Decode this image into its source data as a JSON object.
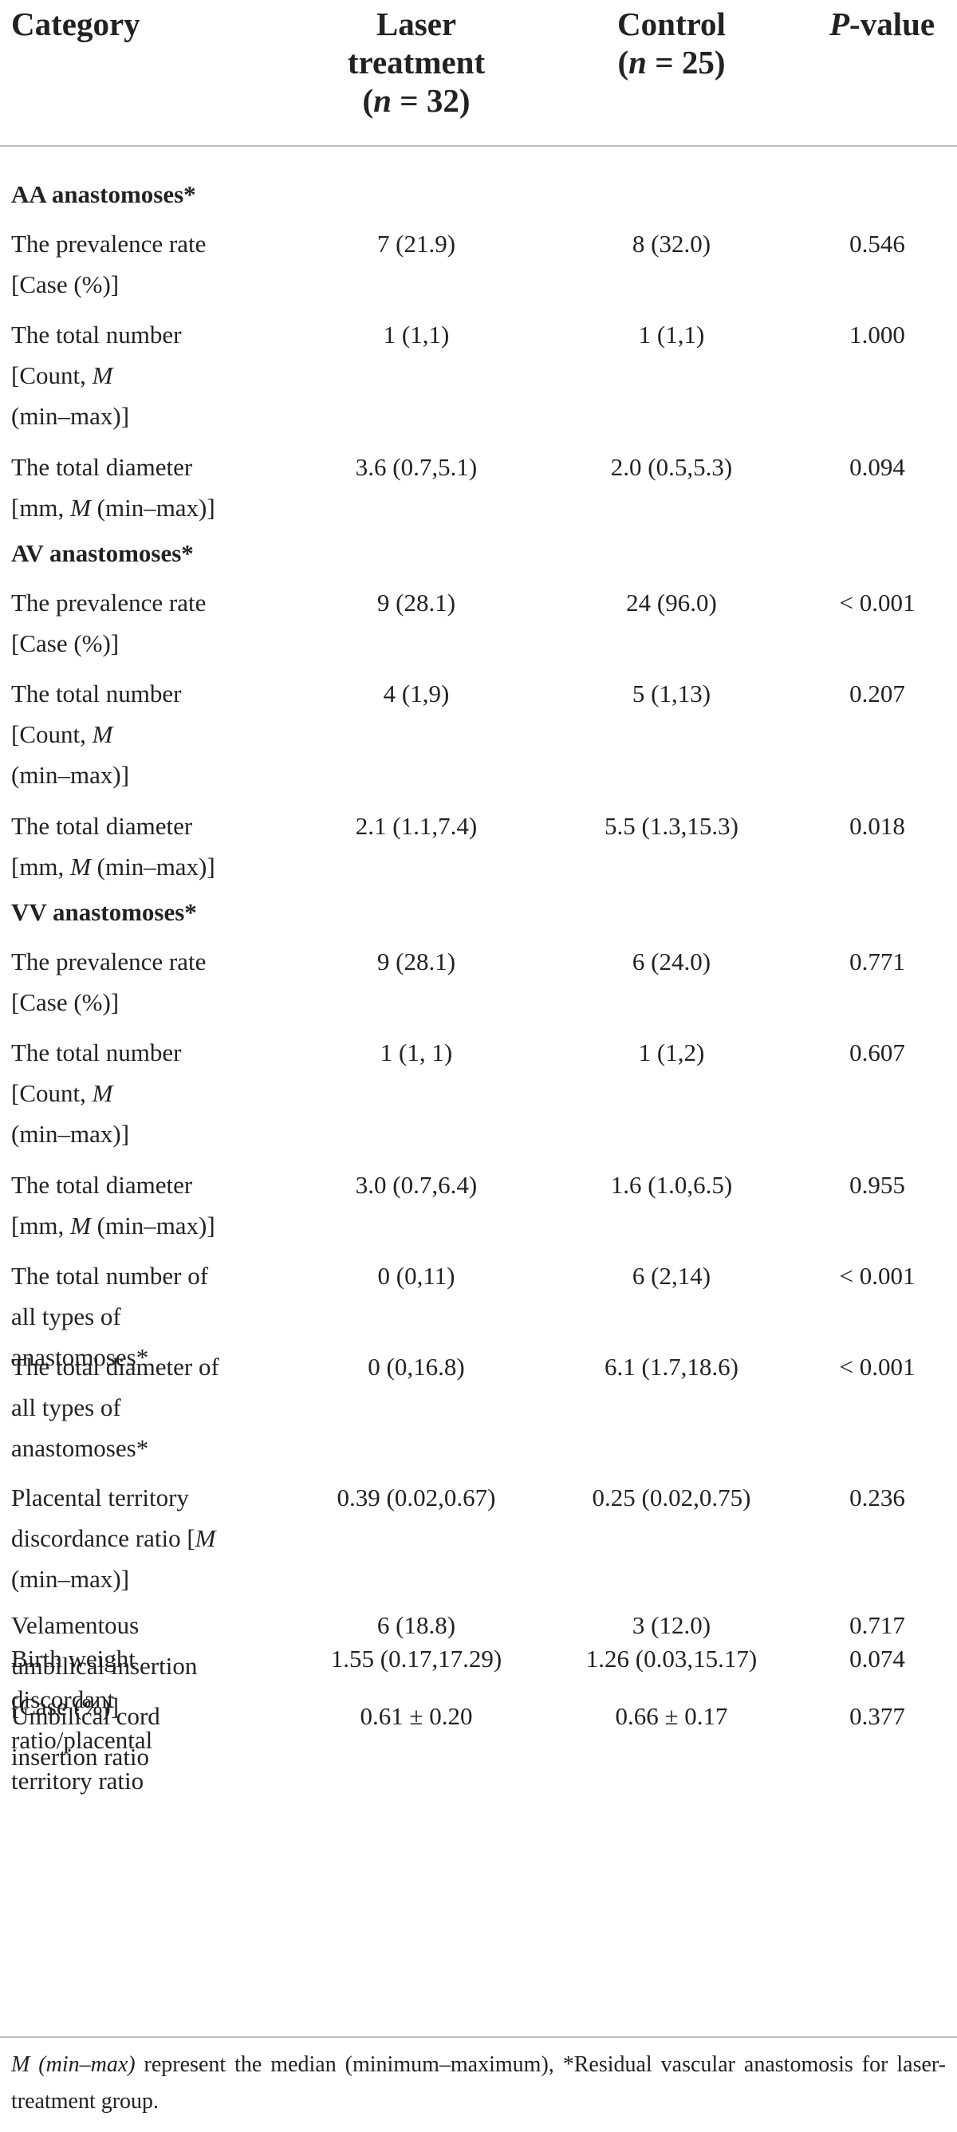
{
  "header": {
    "category": "Category",
    "laser_line1": "Laser",
    "laser_line2": "treatment",
    "laser_n": "(n = 32)",
    "control_line1": "Control",
    "control_n": "(n = 25)",
    "pvalue": "P-value"
  },
  "rows": [
    {
      "type": "section",
      "lines": [
        "AA anastomoses*"
      ]
    },
    {
      "type": "data",
      "lines": [
        "The prevalence rate",
        "[Case (%)]"
      ],
      "laser": "7 (21.9)",
      "control": "8 (32.0)",
      "p": "0.546"
    },
    {
      "type": "data",
      "lines": [
        "The total number",
        "[Count, M",
        "(min–max)]"
      ],
      "laser": "1 (1,1)",
      "control": "1 (1,1)",
      "p": "1.000"
    },
    {
      "type": "data",
      "lines": [
        "The total diameter",
        "[mm, M (min–max)]"
      ],
      "laser": "3.6 (0.7,5.1)",
      "control": "2.0 (0.5,5.3)",
      "p": "0.094"
    },
    {
      "type": "section",
      "lines": [
        "AV anastomoses*"
      ]
    },
    {
      "type": "data",
      "lines": [
        "The prevalence rate",
        "[Case (%)]"
      ],
      "laser": "9 (28.1)",
      "control": "24 (96.0)",
      "p": "< 0.001"
    },
    {
      "type": "data",
      "lines": [
        "The total number",
        "[Count, M",
        "(min–max)]"
      ],
      "laser": "4 (1,9)",
      "control": "5 (1,13)",
      "p": "0.207"
    },
    {
      "type": "data",
      "lines": [
        "The total diameter",
        "[mm, M (min–max)]"
      ],
      "laser": "2.1 (1.1,7.4)",
      "control": "5.5 (1.3,15.3)",
      "p": "0.018"
    },
    {
      "type": "section",
      "lines": [
        "VV anastomoses*"
      ]
    },
    {
      "type": "data",
      "lines": [
        "The prevalence rate",
        "[Case (%)]"
      ],
      "laser": "9 (28.1)",
      "control": "6 (24.0)",
      "p": "0.771"
    },
    {
      "type": "data",
      "lines": [
        "The total number",
        "[Count, M",
        "(min–max)]"
      ],
      "laser": "1 (1, 1)",
      "control": "1 (1,2)",
      "p": "0.607"
    },
    {
      "type": "data",
      "lines": [
        "The total diameter",
        "[mm, M (min–max)]"
      ],
      "laser": "3.0 (0.7,6.4)",
      "control": "1.6 (1.0,6.5)",
      "p": "0.955"
    },
    {
      "type": "data",
      "lines": [
        "The total number of",
        "all types of",
        "anastomoses*"
      ],
      "laser": "0 (0,11)",
      "control": "6 (2,14)",
      "p": "< 0.001"
    },
    {
      "type": "data",
      "lines": [
        "The total diameter of",
        "all types of",
        "anastomoses*"
      ],
      "laser": "0 (0,16.8)",
      "control": "6.1 (1.7,18.6)",
      "p": "< 0.001"
    },
    {
      "type": "data",
      "lines": [
        "Placental territory",
        "discordance ratio [M",
        "(min–max)]"
      ],
      "laser": "0.39 (0.02,0.67)",
      "control": "0.25 (0.02,0.75)",
      "p": "0.236"
    },
    {
      "type": "data",
      "lines": [
        "Velamentous",
        "umbilical insertion",
        "[Case (%)]"
      ],
      "laser": "6 (18.8)",
      "control": "3 (12.0)",
      "p": "0.717"
    },
    {
      "type": "data",
      "lines": [
        "Umbilical cord",
        "insertion ratio"
      ],
      "laser": "0.61 ± 0.20",
      "control": "0.66 ± 0.17",
      "p": "0.377"
    },
    {
      "type": "data",
      "lines": [
        "Birth weight",
        "discordant",
        "ratio/placental",
        "territory ratio"
      ],
      "laser": "1.55 (0.17,17.29)",
      "control": "1.26 (0.03,15.17)",
      "p": "0.074"
    }
  ],
  "footnote": "M (min–max) represent the median (minimum–maximum), *Residual vascular anastomosis for laser-treatment group."
}
